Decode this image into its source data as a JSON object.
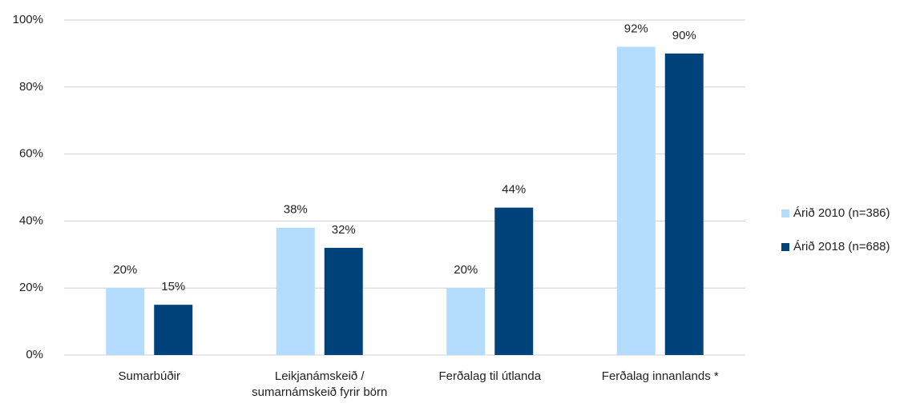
{
  "chart_data": {
    "type": "bar",
    "categories": [
      "Sumarbúðir",
      "Leikjanámskeið / sumarnámskeið fyrir börn",
      "Ferðalag til útlanda",
      "Ferðalag innanlands *"
    ],
    "series": [
      {
        "name": "Árið 2010 (n=386)",
        "color": "#b3dcff",
        "values": [
          20,
          38,
          20,
          92
        ],
        "value_labels": [
          "20%",
          "38%",
          "20%",
          "92%"
        ]
      },
      {
        "name": "Árið 2018 (n=688)",
        "color": "#00437a",
        "values": [
          15,
          32,
          44,
          90
        ],
        "value_labels": [
          "15%",
          "32%",
          "44%",
          "90%"
        ]
      }
    ],
    "ylim": [
      0,
      100
    ],
    "yticks": [
      {
        "value": 0,
        "label": "0%"
      },
      {
        "value": 20,
        "label": "20%"
      },
      {
        "value": 40,
        "label": "40%"
      },
      {
        "value": 60,
        "label": "60%"
      },
      {
        "value": 80,
        "label": "80%"
      },
      {
        "value": 100,
        "label": "100%"
      }
    ],
    "grid": true,
    "legend": "right"
  }
}
